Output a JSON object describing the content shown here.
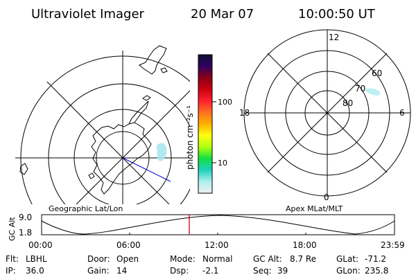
{
  "header": {
    "instrument": "Ultraviolet Imager",
    "date": "20 Mar 07",
    "time": "10:00:50 UT"
  },
  "left_panel": {
    "caption": "Geographic Lat/Lon",
    "features": [
      "coastlines",
      "lat-lon-grid",
      "auroral-emission",
      "blue-direction-line"
    ]
  },
  "colorbar": {
    "unit_label": "photon cm⁻²s⁻¹",
    "ticks": [
      "100",
      "10"
    ],
    "colors": [
      "#101030",
      "#300060",
      "#8a0015",
      "#cc0010",
      "#ff2030",
      "#ff7020",
      "#ffb000",
      "#ffff10",
      "#b0ff10",
      "#10e040",
      "#20d0c0",
      "#b0f0f0",
      "#f0f0f0"
    ]
  },
  "right_panel": {
    "caption": "Apex MLat/MLT",
    "mlt_labels": {
      "top": "12",
      "right": "6",
      "bottom": "0",
      "left": "18"
    },
    "lat_labels": [
      "60",
      "70",
      "80"
    ]
  },
  "altitude_plot": {
    "y_label": "GC Alt",
    "y_ticks": [
      "9.0",
      "1.8"
    ],
    "x_ticks": [
      "00:00",
      "06:00",
      "12:00",
      "18:00",
      "23:59"
    ],
    "marker_color": "#cc0000"
  },
  "footer": {
    "filter": {
      "label": "Flt:",
      "value": "LBHL"
    },
    "ip": {
      "label": "IP:",
      "value": "36.0"
    },
    "door": {
      "label": "Door:",
      "value": "Open"
    },
    "gain": {
      "label": "Gain:",
      "value": "14"
    },
    "mode": {
      "label": "Mode:",
      "value": "Normal"
    },
    "dsp": {
      "label": "Dsp:",
      "value": "-2.1"
    },
    "gc_alt": {
      "label": "GC Alt:",
      "value": "8.7 Re"
    },
    "seq": {
      "label": "Seq:",
      "value": "39"
    },
    "glat": {
      "label": "GLat:",
      "value": "-71.2"
    },
    "glon": {
      "label": "GLon:",
      "value": "235.8"
    }
  }
}
